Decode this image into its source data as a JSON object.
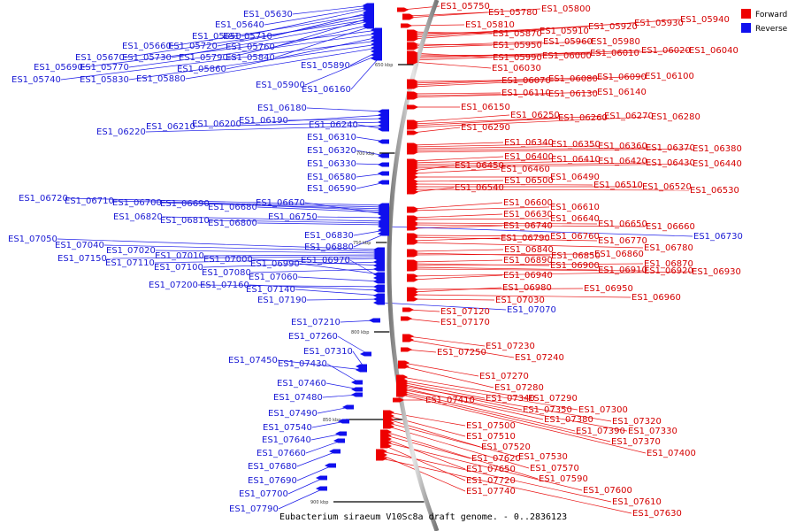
{
  "caption": "Eubacterium siraeum V10Sc8a draft genome. - 0..2836123",
  "legend": [
    {
      "label": "Forward",
      "color": "#ee0000"
    },
    {
      "label": "Reverse",
      "color": "#1010ee"
    }
  ],
  "ruler_ticks": [
    {
      "label": "650 kbp"
    },
    {
      "label": "700 kbp"
    },
    {
      "label": "750 kbp"
    },
    {
      "label": "800 kbp"
    },
    {
      "label": "850 kbp"
    },
    {
      "label": "900 kbp"
    }
  ],
  "forward_genes": [
    "ES1_05750",
    "ES1_05780",
    "ES1_05800",
    "ES1_05810",
    "ES1_05870",
    "ES1_05910",
    "ES1_05920",
    "ES1_05930",
    "ES1_05940",
    "ES1_05950",
    "ES1_05960",
    "ES1_05980",
    "ES1_05990",
    "ES1_06000",
    "ES1_06010",
    "ES1_06020",
    "ES1_06040",
    "ES1_06030",
    "ES1_06070",
    "ES1_06080",
    "ES1_06090",
    "ES1_06100",
    "ES1_06110",
    "ES1_06130",
    "ES1_06140",
    "ES1_06150",
    "ES1_06250",
    "ES1_06260",
    "ES1_06270",
    "ES1_06280",
    "ES1_06290",
    "ES1_06340",
    "ES1_06350",
    "ES1_06360",
    "ES1_06370",
    "ES1_06380",
    "ES1_06400",
    "ES1_06410",
    "ES1_06420",
    "ES1_06430",
    "ES1_06440",
    "ES1_06450",
    "ES1_06460",
    "ES1_06490",
    "ES1_06500",
    "ES1_06510",
    "ES1_06520",
    "ES1_06530",
    "ES1_06540",
    "ES1_06600",
    "ES1_06610",
    "ES1_06630",
    "ES1_06640",
    "ES1_06650",
    "ES1_06660",
    "ES1_06740",
    "ES1_06760",
    "ES1_06770",
    "ES1_06790",
    "ES1_06780",
    "ES1_06840",
    "ES1_06850",
    "ES1_06860",
    "ES1_06890",
    "ES1_06900",
    "ES1_06870",
    "ES1_06910",
    "ES1_06920",
    "ES1_06930",
    "ES1_06940",
    "ES1_06950",
    "ES1_06980",
    "ES1_06960",
    "ES1_07030",
    "ES1_07120",
    "ES1_07170",
    "ES1_07230",
    "ES1_07240",
    "ES1_07250",
    "ES1_07270",
    "ES1_07280",
    "ES1_07290",
    "ES1_07300",
    "ES1_07340",
    "ES1_07350",
    "ES1_07320",
    "ES1_07380",
    "ES1_07330",
    "ES1_07390",
    "ES1_07370",
    "ES1_07400",
    "ES1_07410",
    "ES1_07500",
    "ES1_07510",
    "ES1_07520",
    "ES1_07530",
    "ES1_07570",
    "ES1_07590",
    "ES1_07620",
    "ES1_07650",
    "ES1_07600",
    "ES1_07720",
    "ES1_07610",
    "ES1_07740",
    "ES1_07630"
  ],
  "reverse_genes": [
    "ES1_05630",
    "ES1_05640",
    "ES1_05650",
    "ES1_05710",
    "ES1_05660",
    "ES1_05720",
    "ES1_05760",
    "ES1_05670",
    "ES1_05730",
    "ES1_05790",
    "ES1_05840",
    "ES1_05690",
    "ES1_05770",
    "ES1_05860",
    "ES1_05740",
    "ES1_05830",
    "ES1_05880",
    "ES1_05890",
    "ES1_05900",
    "ES1_06160",
    "ES1_06180",
    "ES1_06200",
    "ES1_06190",
    "ES1_06210",
    "ES1_06220",
    "ES1_06240",
    "ES1_06310",
    "ES1_06320",
    "ES1_06330",
    "ES1_06580",
    "ES1_06590",
    "ES1_06720",
    "ES1_06710",
    "ES1_06700",
    "ES1_06690",
    "ES1_06680",
    "ES1_06670",
    "ES1_06750",
    "ES1_06820",
    "ES1_06810",
    "ES1_06800",
    "ES1_06730",
    "ES1_06830",
    "ES1_06880",
    "ES1_07050",
    "ES1_07040",
    "ES1_07020",
    "ES1_07010",
    "ES1_07150",
    "ES1_07110",
    "ES1_07100",
    "ES1_07000",
    "ES1_07080",
    "ES1_06990",
    "ES1_06970",
    "ES1_07060",
    "ES1_07200",
    "ES1_07160",
    "ES1_07140",
    "ES1_07190",
    "ES1_07070",
    "ES1_07210",
    "ES1_07260",
    "ES1_07310",
    "ES1_07450",
    "ES1_07430",
    "ES1_07460",
    "ES1_07480",
    "ES1_07490",
    "ES1_07540",
    "ES1_07640",
    "ES1_07660",
    "ES1_07680",
    "ES1_07690",
    "ES1_07700",
    "ES1_07790"
  ]
}
